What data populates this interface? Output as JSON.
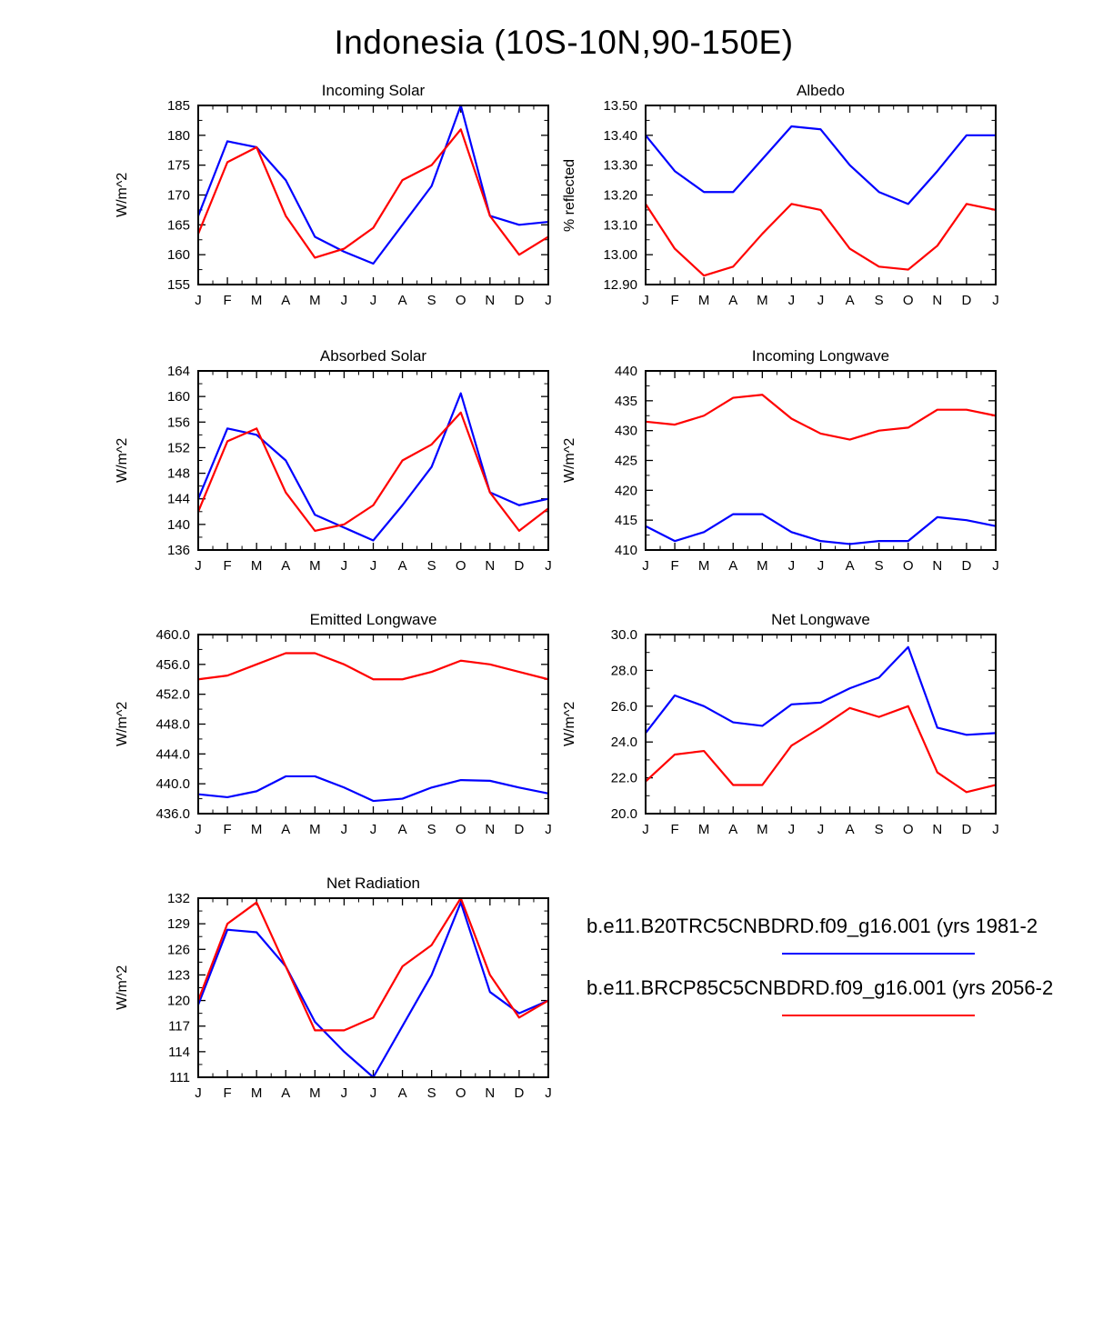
{
  "figure": {
    "title": "Indonesia (10S-10N,90-150E)"
  },
  "legend": {
    "entries": [
      {
        "label": "b.e11.B20TRC5CNBDRD.f09_g16.001 (yrs 1981-2",
        "color": "#0000ff"
      },
      {
        "label": "b.e11.BRCP85C5CNBDRD.f09_g16.001 (yrs 2056-2",
        "color": "#ff0000"
      }
    ]
  },
  "chart_data": {
    "type": "line",
    "months": [
      "J",
      "F",
      "M",
      "A",
      "M",
      "J",
      "J",
      "A",
      "S",
      "O",
      "N",
      "D",
      "J"
    ],
    "charts": [
      {
        "id": "incoming-solar",
        "title": "Incoming Solar",
        "ylabel": "W/m^2",
        "ylim": [
          155,
          185
        ],
        "ytick_labels": [
          "155",
          "160",
          "165",
          "170",
          "175",
          "180",
          "185"
        ],
        "series": [
          {
            "name": "B20TRC5CNBDRD",
            "color": "#0000ff",
            "values": [
              166.5,
              179,
              178,
              172.5,
              163,
              160.5,
              158.5,
              165,
              171.5,
              185,
              166.5,
              165,
              165.5
            ]
          },
          {
            "name": "BRCP85C5CNBDRD",
            "color": "#ff0000",
            "values": [
              163.5,
              175.5,
              178,
              166.5,
              159.5,
              161,
              164.5,
              172.5,
              175,
              181,
              166.5,
              160,
              163
            ]
          }
        ]
      },
      {
        "id": "albedo",
        "title": "Albedo",
        "ylabel": "% reflected",
        "ylim": [
          12.9,
          13.5
        ],
        "ytick_labels": [
          "12.90",
          "13.00",
          "13.10",
          "13.20",
          "13.30",
          "13.40",
          "13.50"
        ],
        "series": [
          {
            "name": "B20TRC5CNBDRD",
            "color": "#0000ff",
            "values": [
              13.4,
              13.28,
              13.21,
              13.21,
              13.32,
              13.43,
              13.42,
              13.3,
              13.21,
              13.17,
              13.28,
              13.4,
              13.4
            ]
          },
          {
            "name": "BRCP85C5CNBDRD",
            "color": "#ff0000",
            "values": [
              13.17,
              13.02,
              12.93,
              12.96,
              13.07,
              13.17,
              13.15,
              13.02,
              12.96,
              12.95,
              13.03,
              13.17,
              13.15
            ]
          }
        ]
      },
      {
        "id": "absorbed-solar",
        "title": "Absorbed Solar",
        "ylabel": "W/m^2",
        "ylim": [
          136,
          164
        ],
        "ytick_labels": [
          "136",
          "140",
          "144",
          "148",
          "152",
          "156",
          "160",
          "164"
        ],
        "series": [
          {
            "name": "B20TRC5CNBDRD",
            "color": "#0000ff",
            "values": [
              144,
              155,
              154,
              150,
              141.5,
              139.5,
              137.5,
              143,
              149,
              160.5,
              145,
              143,
              144
            ]
          },
          {
            "name": "BRCP85C5CNBDRD",
            "color": "#ff0000",
            "values": [
              142,
              153,
              155,
              145,
              139,
              140,
              143,
              150,
              152.5,
              157.5,
              145,
              139,
              142.5
            ]
          }
        ]
      },
      {
        "id": "incoming-longwave",
        "title": "Incoming Longwave",
        "ylabel": "W/m^2",
        "ylim": [
          410,
          440
        ],
        "ytick_labels": [
          "410",
          "415",
          "420",
          "425",
          "430",
          "435",
          "440"
        ],
        "series": [
          {
            "name": "B20TRC5CNBDRD",
            "color": "#0000ff",
            "values": [
              414,
              411.5,
              413,
              416,
              416,
              413,
              411.5,
              411,
              411.5,
              411.5,
              415.5,
              415,
              414
            ]
          },
          {
            "name": "BRCP85C5CNBDRD",
            "color": "#ff0000",
            "values": [
              431.5,
              431,
              432.5,
              435.5,
              436,
              432,
              429.5,
              428.5,
              430,
              430.5,
              433.5,
              433.5,
              432.5
            ]
          }
        ]
      },
      {
        "id": "emitted-longwave",
        "title": "Emitted Longwave",
        "ylabel": "W/m^2",
        "ylim": [
          436.0,
          460.0
        ],
        "ytick_labels": [
          "436.0",
          "440.0",
          "444.0",
          "448.0",
          "452.0",
          "456.0",
          "460.0"
        ],
        "series": [
          {
            "name": "B20TRC5CNBDRD",
            "color": "#0000ff",
            "values": [
              438.6,
              438.2,
              439.0,
              441.0,
              441.0,
              439.5,
              437.7,
              438.0,
              439.5,
              440.5,
              440.4,
              439.5,
              438.7
            ]
          },
          {
            "name": "BRCP85C5CNBDRD",
            "color": "#ff0000",
            "values": [
              454,
              454.5,
              456,
              457.5,
              457.5,
              456,
              454,
              454,
              455,
              456.5,
              456,
              455,
              454
            ]
          }
        ]
      },
      {
        "id": "net-longwave",
        "title": "Net Longwave",
        "ylabel": "W/m^2",
        "ylim": [
          20.0,
          30.0
        ],
        "ytick_labels": [
          "20.0",
          "22.0",
          "24.0",
          "26.0",
          "28.0",
          "30.0"
        ],
        "series": [
          {
            "name": "B20TRC5CNBDRD",
            "color": "#0000ff",
            "values": [
              24.5,
              26.6,
              26.0,
              25.1,
              24.9,
              26.1,
              26.2,
              27.0,
              27.6,
              29.3,
              24.8,
              24.4,
              24.5
            ]
          },
          {
            "name": "BRCP85C5CNBDRD",
            "color": "#ff0000",
            "values": [
              21.8,
              23.3,
              23.5,
              21.6,
              21.6,
              23.8,
              24.8,
              25.9,
              25.4,
              26.0,
              22.3,
              21.2,
              21.6
            ]
          }
        ]
      },
      {
        "id": "net-radiation",
        "title": "Net Radiation",
        "ylabel": "W/m^2",
        "ylim": [
          111,
          132
        ],
        "ytick_labels": [
          "111",
          "114",
          "117",
          "120",
          "123",
          "126",
          "129",
          "132"
        ],
        "series": [
          {
            "name": "B20TRC5CNBDRD",
            "color": "#0000ff",
            "values": [
              119.5,
              128.3,
              128,
              124,
              117.5,
              114,
              111,
              117,
              123,
              131.5,
              121,
              118.5,
              120
            ]
          },
          {
            "name": "BRCP85C5CNBDRD",
            "color": "#ff0000",
            "values": [
              120,
              129,
              131.5,
              124,
              116.5,
              116.5,
              118,
              124,
              126.5,
              132,
              123,
              118,
              120
            ]
          }
        ]
      }
    ]
  }
}
